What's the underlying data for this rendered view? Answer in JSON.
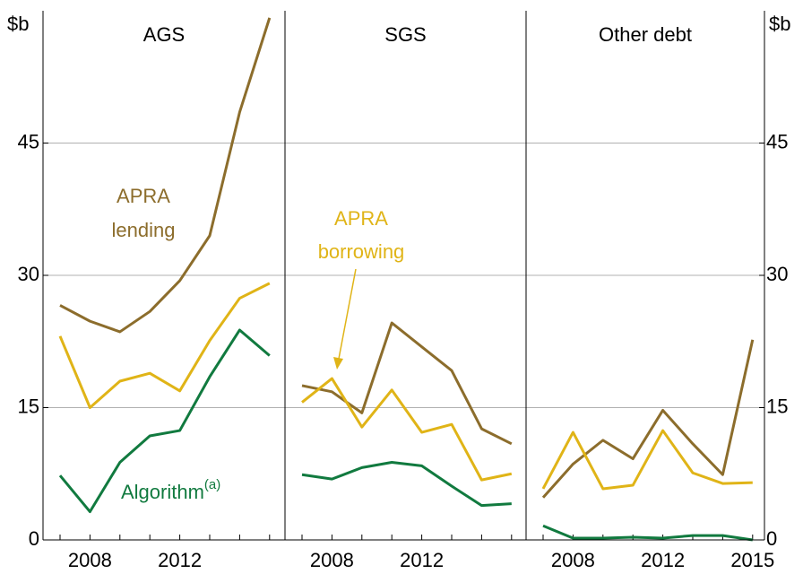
{
  "chart_data": {
    "type": "line",
    "y_unit": "$b",
    "ylim": [
      0,
      60
    ],
    "yticks": [
      0,
      15,
      30,
      45
    ],
    "grid": true,
    "panels": [
      {
        "title": "AGS",
        "categories": [
          null,
          "2008",
          null,
          null,
          "2012",
          null,
          null,
          null
        ],
        "series": [
          {
            "color": "#8c6d2c",
            "values": [
              26.6,
              24.8,
              23.6,
              25.9,
              29.4,
              34.5,
              48.5,
              59.2
            ]
          },
          {
            "color": "#e0b417",
            "values": [
              23.1,
              15.0,
              18.0,
              18.9,
              16.9,
              22.6,
              27.4,
              29.1
            ]
          },
          {
            "color": "#117a3f",
            "values": [
              7.3,
              3.2,
              8.8,
              11.8,
              12.4,
              18.5,
              23.8,
              20.9
            ]
          }
        ]
      },
      {
        "title": "SGS",
        "categories": [
          null,
          "2008",
          null,
          null,
          "2012",
          null,
          null,
          null
        ],
        "series": [
          {
            "color": "#8c6d2c",
            "values": [
              17.5,
              16.8,
              14.4,
              24.6,
              21.9,
              19.2,
              12.6,
              10.9
            ]
          },
          {
            "color": "#e0b417",
            "values": [
              15.6,
              18.3,
              12.8,
              17.0,
              12.2,
              13.1,
              6.8,
              7.5
            ]
          },
          {
            "color": "#117a3f",
            "values": [
              7.4,
              6.9,
              8.2,
              8.8,
              8.4,
              6.1,
              3.9,
              4.1
            ]
          }
        ]
      },
      {
        "title": "Other debt",
        "categories": [
          null,
          "2008",
          null,
          null,
          "2012",
          null,
          null,
          "2015"
        ],
        "series": [
          {
            "color": "#8c6d2c",
            "values": [
              4.8,
              8.6,
              11.3,
              9.2,
              14.7,
              10.9,
              7.4,
              22.7
            ]
          },
          {
            "color": "#e0b417",
            "values": [
              5.8,
              12.2,
              5.8,
              6.2,
              12.4,
              7.6,
              6.4,
              6.5
            ]
          },
          {
            "color": "#117a3f",
            "values": [
              1.6,
              0.2,
              0.2,
              0.3,
              0.2,
              0.5,
              0.5,
              0.0
            ]
          }
        ]
      }
    ],
    "annotations": {
      "lending": {
        "lines": [
          "APRA",
          "lending"
        ],
        "color": "#8c6d2c"
      },
      "borrowing": {
        "lines": [
          "APRA",
          "borrowing"
        ],
        "color": "#e0b417"
      },
      "algorithm": {
        "text": "Algorithm",
        "superscript": "(a)",
        "color": "#117a3f"
      }
    }
  }
}
